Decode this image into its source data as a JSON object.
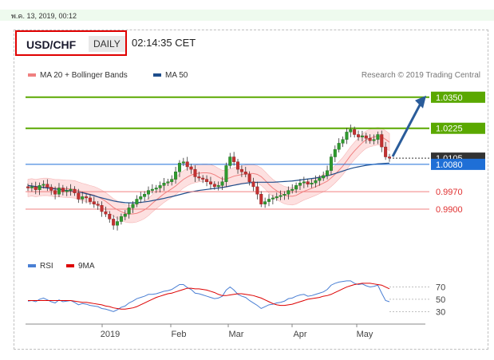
{
  "header": {
    "date_text": "พ.ค. 13, 2019, 00:12",
    "symbol": "USD/CHF",
    "timeframe": "DAILY",
    "time": "02:14:35 CET"
  },
  "legend": {
    "items": [
      {
        "label": "MA 20 + Bollinger Bands",
        "color": "#f08080"
      },
      {
        "label": "MA 50",
        "color": "#1f4e8c"
      }
    ],
    "copyright": "Research © 2019 Trading Central"
  },
  "chart_data": {
    "type": "candlestick",
    "x_labels": [
      "2019",
      "Feb",
      "Mar",
      "Apr",
      "May"
    ],
    "ylim": [
      0.972,
      1.042
    ],
    "levels": [
      {
        "label": "1.0350",
        "value": 1.035,
        "style": "resistance",
        "color": "#5aa800"
      },
      {
        "label": "1.0225",
        "value": 1.0225,
        "style": "resistance",
        "color": "#5aa800"
      },
      {
        "label": "1.0105",
        "value": 1.0105,
        "style": "current",
        "color": "#333333"
      },
      {
        "label": "1.0080",
        "value": 1.008,
        "style": "pivot",
        "color": "#1f6fd6"
      },
      {
        "label": "0.9970",
        "value": 0.997,
        "style": "support",
        "color": "#f08080"
      },
      {
        "label": "0.9900",
        "value": 0.99,
        "style": "support",
        "color": "#f08080"
      }
    ],
    "closes": [
      0.9985,
      0.999,
      0.9978,
      0.9995,
      1.0,
      0.9988,
      0.9975,
      0.996,
      0.9985,
      0.997,
      0.9975,
      0.998,
      0.9965,
      0.994,
      0.995,
      0.9945,
      0.993,
      0.992,
      0.9915,
      0.989,
      0.988,
      0.986,
      0.9835,
      0.985,
      0.987,
      0.988,
      0.9905,
      0.992,
      0.994,
      0.995,
      0.996,
      0.9975,
      0.998,
      0.9985,
      0.9995,
      1.0005,
      1.001,
      1.002,
      1.005,
      1.0085,
      1.009,
      1.007,
      1.006,
      1.003,
      1.0025,
      1.002,
      1.001,
      1.0,
      0.999,
      0.9995,
      1.001,
      1.0075,
      1.011,
      1.009,
      1.006,
      1.005,
      1.004,
      1.001,
      0.999,
      0.996,
      0.992,
      0.993,
      0.994,
      0.9945,
      0.995,
      0.9955,
      0.996,
      0.9975,
      0.998,
      0.9995,
      1.0005,
      1.001,
      1.0,
      1.0005,
      1.0015,
      1.0025,
      1.0035,
      1.0055,
      1.011,
      1.014,
      1.0165,
      1.018,
      1.021,
      1.022,
      1.02,
      1.019,
      1.0195,
      1.0185,
      1.0175,
      1.018,
      1.02,
      1.015,
      1.011,
      1.0105
    ],
    "ma50": [
      0.9995,
      0.9993,
      0.9991,
      0.9989,
      0.9987,
      0.9985,
      0.9983,
      0.9981,
      0.9979,
      0.9977,
      0.9975,
      0.9973,
      0.9971,
      0.9969,
      0.9966,
      0.9962,
      0.9958,
      0.9954,
      0.9949,
      0.9945,
      0.9941,
      0.9937,
      0.9933,
      0.993,
      0.9928,
      0.9926,
      0.9925,
      0.9925,
      0.9926,
      0.9927,
      0.9929,
      0.9931,
      0.9934,
      0.9937,
      0.994,
      0.9943,
      0.9947,
      0.995,
      0.9954,
      0.9958,
      0.9962,
      0.9966,
      0.9969,
      0.9972,
      0.9975,
      0.9977,
      0.9979,
      0.9981,
      0.9983,
      0.9985,
      0.9987,
      0.999,
      0.9993,
      0.9996,
      0.9999,
      1.0002,
      1.0004,
      1.0006,
      1.0007,
      1.0008,
      1.0008,
      1.0008,
      1.0008,
      1.0008,
      1.0009,
      1.001,
      1.0011,
      1.0012,
      1.0013,
      1.0015,
      1.0017,
      1.0019,
      1.0021,
      1.0023,
      1.0025,
      1.0028,
      1.0031,
      1.0034,
      1.0038,
      1.0043,
      1.0048,
      1.0053,
      1.0058,
      1.0063,
      1.0067,
      1.007,
      1.0073,
      1.0076,
      1.0078,
      1.008,
      1.0082,
      1.0083,
      1.0084,
      1.0085
    ],
    "bb_width": 0.0035,
    "rsi_panel": {
      "legend": [
        {
          "label": "RSI",
          "color": "#4a7fd4"
        },
        {
          "label": "9MA",
          "color": "#dd0000"
        }
      ],
      "ylim": [
        20,
        85
      ],
      "y_labels": [
        "70",
        "50",
        "30"
      ],
      "y_values": [
        70,
        50,
        30
      ],
      "rsi": [
        47,
        48,
        46,
        50,
        52,
        49,
        46,
        44,
        49,
        46,
        47,
        48,
        45,
        41,
        43,
        42,
        40,
        39,
        38,
        35,
        34,
        32,
        30,
        33,
        37,
        39,
        44,
        47,
        51,
        53,
        55,
        58,
        58,
        59,
        61,
        63,
        64,
        66,
        70,
        74,
        74,
        69,
        66,
        60,
        59,
        57,
        55,
        53,
        51,
        52,
        55,
        65,
        70,
        65,
        58,
        55,
        53,
        48,
        44,
        40,
        35,
        38,
        41,
        42,
        44,
        45,
        47,
        51,
        52,
        55,
        57,
        58,
        55,
        56,
        58,
        60,
        62,
        66,
        73,
        76,
        78,
        79,
        80,
        80,
        76,
        74,
        75,
        72,
        70,
        71,
        73,
        60,
        48,
        46
      ],
      "ma9": [
        48,
        48,
        48,
        48,
        48,
        48,
        48,
        48,
        48,
        48,
        48,
        48,
        47,
        46,
        45,
        45,
        44,
        43,
        42,
        41,
        39,
        38,
        36,
        35,
        34,
        34,
        35,
        36,
        38,
        41,
        44,
        47,
        50,
        53,
        55,
        57,
        59,
        60,
        62,
        64,
        66,
        68,
        68,
        67,
        67,
        66,
        65,
        63,
        61,
        58,
        56,
        56,
        57,
        58,
        59,
        59,
        58,
        57,
        56,
        54,
        52,
        49,
        46,
        43,
        41,
        40,
        40,
        41,
        42,
        44,
        46,
        48,
        50,
        51,
        52,
        53,
        55,
        56,
        58,
        61,
        64,
        67,
        70,
        72,
        74,
        75,
        76,
        76,
        76,
        75,
        74,
        73,
        70,
        67
      ]
    }
  }
}
